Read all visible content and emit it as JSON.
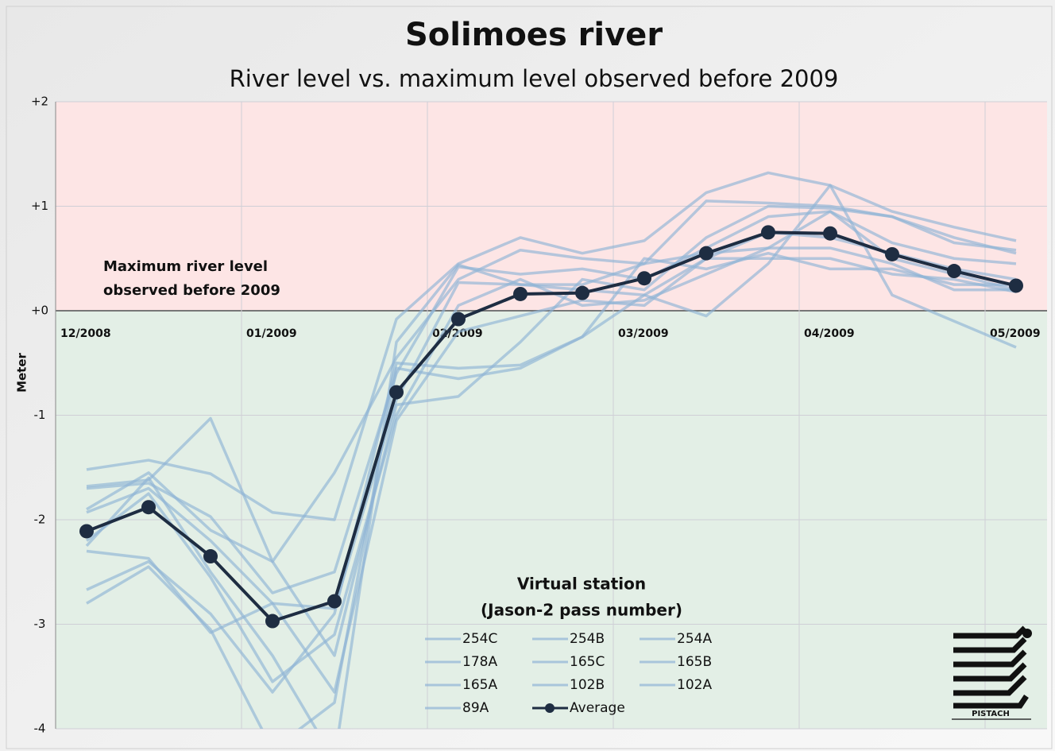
{
  "chart_data": {
    "type": "line",
    "title": "Solimoes river",
    "subtitle": "River level vs. maximum level observed before 2009",
    "y_label": "Meter",
    "annotation": [
      "Maximum river level",
      "observed before 2009"
    ],
    "legend_title": [
      "Virtual station",
      "(Jason-2 pass number)"
    ],
    "logo_text": "PISTACH",
    "x": [
      0.5,
      1.5,
      2.5,
      3.5,
      4.5,
      5.5,
      6.5,
      7.5,
      8.5,
      9.5,
      10.5,
      11.5,
      12.5,
      13.5,
      14.5,
      15.5
    ],
    "xlim": [
      0,
      16
    ],
    "xticks": [
      {
        "value": 0,
        "label": "12/2008"
      },
      {
        "value": 3,
        "label": "01/2009"
      },
      {
        "value": 6,
        "label": "02/2009"
      },
      {
        "value": 9,
        "label": "03/2009"
      },
      {
        "value": 12,
        "label": "04/2009"
      },
      {
        "value": 15,
        "label": "05/2009"
      }
    ],
    "ylim": [
      -4,
      2
    ],
    "yticks": [
      -4,
      -3,
      -2,
      -1,
      {
        "value": 0,
        "label": "+0"
      },
      {
        "value": 1,
        "label": "+1"
      },
      {
        "value": 2,
        "label": "+2"
      }
    ],
    "grid": true,
    "series": [
      {
        "name": "254C",
        "color": "#8fb4d6",
        "values": [
          -1.52,
          -1.43,
          -1.56,
          -1.93,
          -2.0,
          -0.08,
          0.45,
          0.7,
          0.55,
          0.67,
          1.13,
          1.32,
          1.2,
          0.95,
          0.8,
          0.67
        ]
      },
      {
        "name": "254B",
        "color": "#8fb4d6",
        "values": [
          -1.68,
          -1.62,
          -1.03,
          -2.4,
          -1.55,
          -0.45,
          0.3,
          0.58,
          0.5,
          0.45,
          1.05,
          1.03,
          1.0,
          0.9,
          0.65,
          0.58
        ]
      },
      {
        "name": "254A",
        "color": "#8fb4d6",
        "values": [
          -1.7,
          -1.65,
          -1.97,
          -2.7,
          -2.5,
          -0.6,
          0.42,
          0.35,
          0.4,
          0.3,
          0.6,
          0.9,
          0.95,
          0.65,
          0.5,
          0.45
        ]
      },
      {
        "name": "178A",
        "color": "#8fb4d6",
        "values": [
          -1.93,
          -1.7,
          -2.2,
          -2.8,
          -2.85,
          -0.85,
          0.27,
          0.25,
          0.2,
          0.15,
          0.5,
          0.75,
          0.7,
          0.55,
          0.4,
          0.3
        ]
      },
      {
        "name": "165C",
        "color": "#8fb4d6",
        "values": [
          -2.2,
          -1.75,
          -2.55,
          -3.55,
          -3.1,
          -1.0,
          0.05,
          0.3,
          0.05,
          0.1,
          0.35,
          0.6,
          0.6,
          0.45,
          0.2,
          0.2
        ]
      },
      {
        "name": "165B",
        "color": "#8fb4d6",
        "values": [
          -2.3,
          -2.37,
          -3.08,
          -2.8,
          -3.65,
          -1.05,
          -0.2,
          -0.05,
          0.1,
          0.05,
          0.5,
          0.5,
          0.5,
          0.35,
          0.3,
          0.18
        ]
      },
      {
        "name": "165A",
        "color": "#8fb4d6",
        "values": [
          -2.67,
          -2.4,
          -2.9,
          -3.65,
          -2.9,
          -0.5,
          -0.55,
          -0.52,
          -0.25,
          0.5,
          0.4,
          0.55,
          0.4,
          0.4,
          0.25,
          0.25
        ]
      },
      {
        "name": "102B",
        "color": "#8fb4d6",
        "values": [
          -2.8,
          -2.45,
          -3.05,
          -4.2,
          -3.75,
          -0.55,
          -0.65,
          -0.55,
          -0.25,
          0.15,
          -0.05,
          0.45,
          1.2,
          0.15,
          -0.1,
          -0.35
        ]
      },
      {
        "name": "102A",
        "color": "#8fb4d6",
        "values": [
          -1.9,
          -1.55,
          -2.1,
          -2.4,
          -3.3,
          -0.9,
          -0.82,
          -0.3,
          0.3,
          0.2,
          0.7,
          1.0,
          0.98,
          0.9,
          0.7,
          0.55
        ]
      },
      {
        "name": "89A",
        "color": "#8fb4d6",
        "values": [
          -2.25,
          -1.6,
          -2.5,
          -3.3,
          -4.3,
          -0.3,
          0.44,
          0.25,
          0.25,
          0.45,
          0.55,
          0.6,
          0.95,
          0.5,
          0.35,
          0.2
        ]
      },
      {
        "name": "Average",
        "color": "#1e2d42",
        "marker": true,
        "values": [
          -2.11,
          -1.88,
          -2.35,
          -2.97,
          -2.78,
          -0.78,
          -0.08,
          0.16,
          0.17,
          0.31,
          0.55,
          0.75,
          0.74,
          0.54,
          0.38,
          0.24
        ]
      }
    ]
  }
}
